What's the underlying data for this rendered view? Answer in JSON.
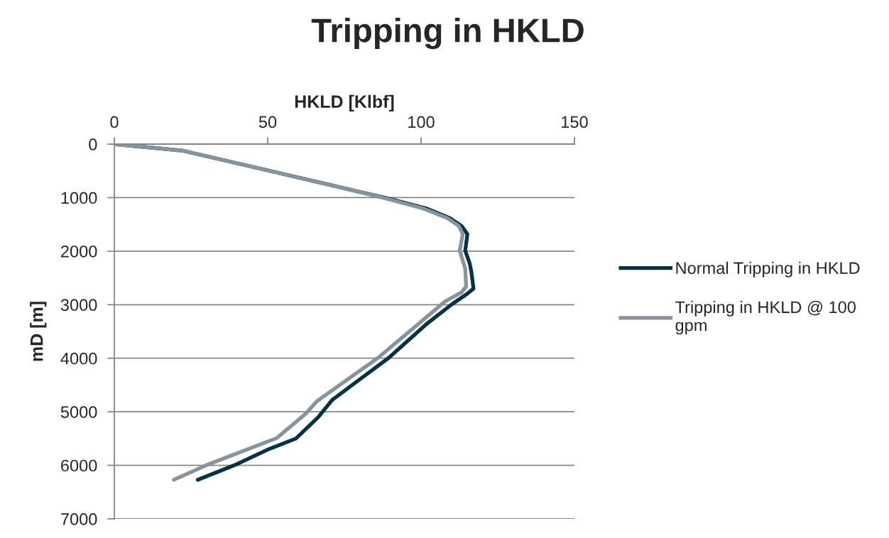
{
  "chart_data": {
    "type": "line",
    "title": "Tripping in HKLD",
    "xlabel": "HKLD [Klbf]",
    "ylabel": "mD [m]",
    "xlim": [
      0,
      150
    ],
    "xticks": [
      0,
      50,
      100,
      150
    ],
    "ylim": [
      7000,
      0
    ],
    "yticks": [
      0,
      1000,
      2000,
      3000,
      4000,
      5000,
      6000,
      7000
    ],
    "grid": "y",
    "legend": "right",
    "series": [
      {
        "name": "Normal Tripping in HKLD",
        "color": "#043348",
        "x": [
          0,
          22,
          50,
          88,
          101.6,
          109.3,
          113.2,
          115.1,
          114.4,
          115.9,
          116.4,
          117.1,
          114.7,
          110.1,
          101.6,
          89.3,
          71,
          66.5,
          59.2,
          50.7,
          39.1,
          27.2
        ],
        "values": [
          0,
          120,
          490,
          1000,
          1200,
          1380,
          1530,
          1680,
          1990,
          2240,
          2390,
          2700,
          2810,
          2990,
          3370,
          4000,
          4780,
          5100,
          5500,
          5690,
          6000,
          6270
        ]
      },
      {
        "name": "Tripping in HKLD @ 100 gpm",
        "color": "#87949e",
        "x": [
          0,
          22,
          50,
          87.5,
          100.5,
          108.5,
          112.3,
          113.6,
          112.6,
          114.4,
          114.7,
          113.2,
          107.8,
          98.9,
          85.8,
          66.1,
          62.3,
          53,
          43,
          29.9,
          19.4
        ],
        "values": [
          0,
          120,
          490,
          1000,
          1200,
          1380,
          1530,
          1680,
          1990,
          2330,
          2660,
          2770,
          2940,
          3370,
          4000,
          4800,
          5040,
          5490,
          5710,
          6000,
          6270
        ]
      }
    ]
  }
}
